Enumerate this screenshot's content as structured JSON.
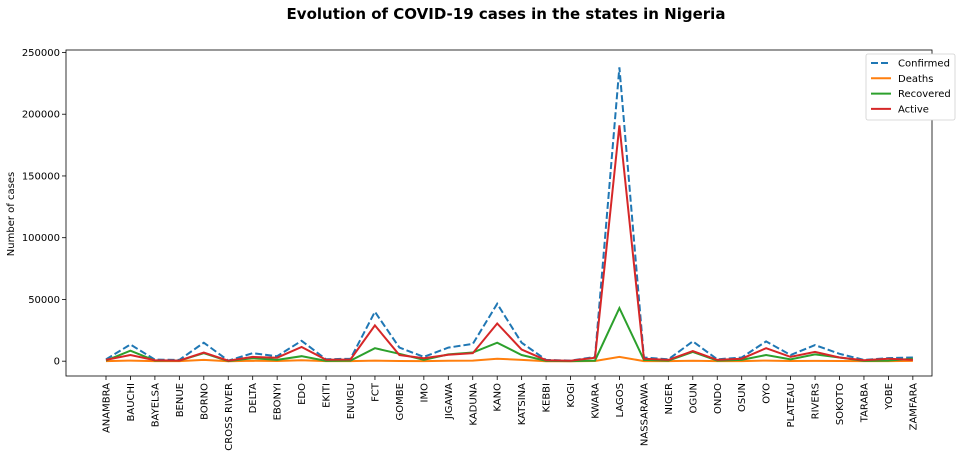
{
  "chart_data": {
    "type": "line",
    "title": "Evolution of COVID-19 cases in the states in Nigeria",
    "xlabel": "",
    "ylabel": "Number of cases",
    "ylim": [
      -12000,
      252000
    ],
    "yticks": [
      0,
      50000,
      100000,
      150000,
      200000,
      250000
    ],
    "ytick_labels": [
      "0",
      "50000",
      "100000",
      "150000",
      "200000",
      "250000"
    ],
    "grid": false,
    "legend_placement": "top-right",
    "categories": [
      "ANAMBRA",
      "BAUCHI",
      "BAYELSA",
      "BENUE",
      "BORNO",
      "CROSS RIVER",
      "DELTA",
      "EBONYI",
      "EDO",
      "EKITI",
      "ENUGU",
      "FCT",
      "GOMBE",
      "IMO",
      "JIGAWA",
      "KADUNA",
      "KANO",
      "KATSINA",
      "KEBBI",
      "KOGI",
      "KWARA",
      "LAGOS",
      "NASSARAWA",
      "NIGER",
      "OGUN",
      "ONDO",
      "OSUN",
      "OYO",
      "PLATEAU",
      "RIVERS",
      "SOKOTO",
      "TARABA",
      "YOBE",
      "ZAMFARA"
    ],
    "series": [
      {
        "name": "Confirmed",
        "color": "#1f77b4",
        "dash": true,
        "values": [
          1500,
          13500,
          1300,
          1000,
          15000,
          500,
          6500,
          4000,
          16500,
          1500,
          2000,
          40000,
          11000,
          3500,
          11000,
          14000,
          46500,
          15000,
          1000,
          500,
          3500,
          238000,
          3000,
          1500,
          16000,
          1500,
          3000,
          16000,
          5000,
          13000,
          6000,
          1000,
          2500,
          3000
        ]
      },
      {
        "name": "Deaths",
        "color": "#ff7f0e",
        "dash": false,
        "values": [
          50,
          500,
          30,
          30,
          1000,
          20,
          300,
          150,
          700,
          50,
          50,
          500,
          150,
          100,
          300,
          500,
          2000,
          1000,
          20,
          10,
          150,
          3500,
          100,
          50,
          300,
          50,
          100,
          500,
          150,
          200,
          150,
          30,
          100,
          200
        ]
      },
      {
        "name": "Recovered",
        "color": "#2ca02c",
        "dash": false,
        "values": [
          500,
          8500,
          500,
          500,
          6500,
          100,
          2500,
          1000,
          4000,
          200,
          500,
          10500,
          6000,
          1000,
          5500,
          7000,
          15000,
          5000,
          200,
          100,
          500,
          43000,
          1000,
          500,
          7500,
          500,
          1000,
          5000,
          1500,
          5500,
          3000,
          200,
          500,
          2000
        ]
      },
      {
        "name": "Active",
        "color": "#d62728",
        "dash": false,
        "values": [
          1000,
          5000,
          800,
          500,
          7000,
          400,
          3500,
          2800,
          11500,
          1200,
          1400,
          29000,
          5000,
          2400,
          5200,
          6500,
          30500,
          9500,
          800,
          400,
          2800,
          191000,
          2000,
          1000,
          8200,
          1000,
          2000,
          10500,
          3500,
          7500,
          3000,
          800,
          2000,
          1000
        ]
      }
    ]
  }
}
